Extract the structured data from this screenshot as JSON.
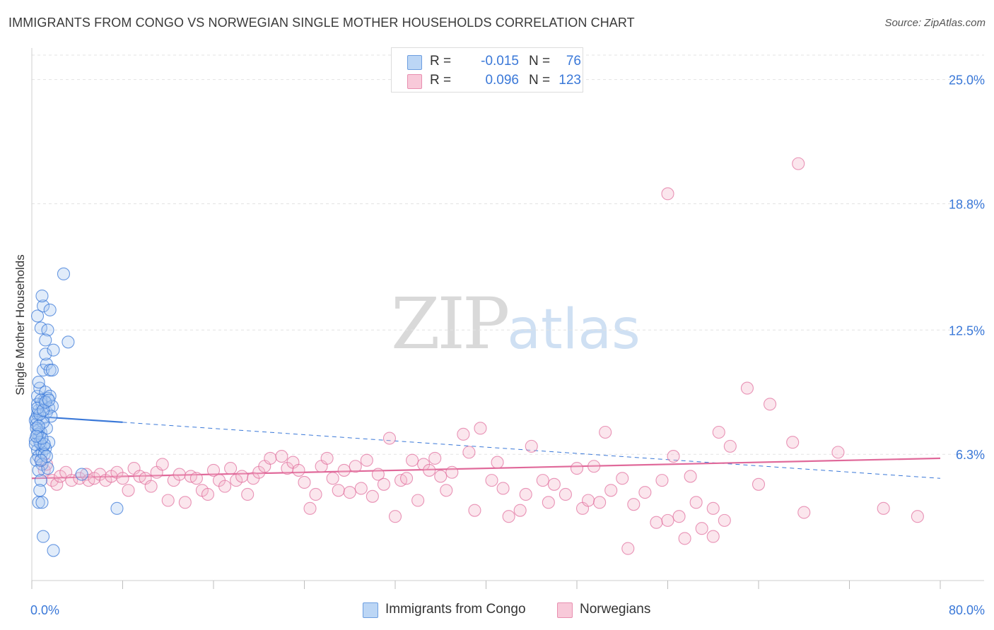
{
  "title": "IMMIGRANTS FROM CONGO VS NORWEGIAN SINGLE MOTHER HOUSEHOLDS CORRELATION CHART",
  "source": "Source: ZipAtlas.com",
  "watermark": {
    "zip": "ZIP",
    "atlas": "atlas"
  },
  "colors": {
    "blue": "#3a78d8",
    "blue_fill": "#a9c8f0",
    "pink": "#e0699a",
    "pink_fill": "#f4b6cb",
    "grid": "#e3e3e3"
  },
  "legend": {
    "rows": [
      {
        "r_label": "R =",
        "r_value": "-0.015",
        "n_label": "N =",
        "n_value": "76"
      },
      {
        "r_label": "R =",
        "r_value": "0.096",
        "n_label": "N =",
        "n_value": "123"
      }
    ]
  },
  "bottom_legend": [
    "Immigrants from Congo",
    "Norwegians"
  ],
  "chart_data": {
    "type": "scatter",
    "title": "IMMIGRANTS FROM CONGO VS NORWEGIAN SINGLE MOTHER HOUSEHOLDS CORRELATION CHART",
    "xlabel": "",
    "ylabel": "Single Mother Households",
    "xlim": [
      0,
      80
    ],
    "ylim": [
      0,
      26.5
    ],
    "x_tick_labels": [
      "0.0%",
      "80.0%"
    ],
    "y_ticks": [
      6.3,
      12.5,
      18.8,
      25.0
    ],
    "y_tick_labels": [
      "6.3%",
      "12.5%",
      "18.8%",
      "25.0%"
    ],
    "grid": true,
    "legend_position": "top-center",
    "series": [
      {
        "name": "Immigrants from Congo",
        "r": -0.015,
        "n": 76,
        "trend": {
          "x": [
            0,
            8
          ],
          "y": [
            8.2,
            7.9
          ],
          "dashed_to_x": 80,
          "dashed_end_y": 5.1
        },
        "points": [
          [
            0.3,
            8.0
          ],
          [
            0.4,
            7.8
          ],
          [
            0.5,
            8.3
          ],
          [
            0.6,
            7.5
          ],
          [
            0.3,
            7.0
          ],
          [
            0.7,
            7.2
          ],
          [
            0.8,
            6.8
          ],
          [
            0.5,
            6.5
          ],
          [
            0.6,
            6.2
          ],
          [
            0.4,
            6.0
          ],
          [
            0.9,
            6.4
          ],
          [
            1.0,
            6.7
          ],
          [
            0.8,
            7.4
          ],
          [
            0.6,
            8.5
          ],
          [
            0.9,
            8.8
          ],
          [
            1.1,
            9.0
          ],
          [
            0.5,
            9.2
          ],
          [
            0.7,
            9.6
          ],
          [
            1.2,
            9.4
          ],
          [
            1.0,
            8.1
          ],
          [
            1.3,
            8.4
          ],
          [
            1.5,
            8.6
          ],
          [
            1.4,
            9.1
          ],
          [
            1.6,
            9.2
          ],
          [
            1.8,
            8.7
          ],
          [
            1.7,
            8.2
          ],
          [
            1.3,
            7.6
          ],
          [
            1.5,
            6.9
          ],
          [
            1.2,
            6.6
          ],
          [
            1.1,
            6.3
          ],
          [
            0.9,
            5.8
          ],
          [
            0.6,
            5.5
          ],
          [
            0.8,
            5.0
          ],
          [
            0.7,
            4.5
          ],
          [
            0.6,
            3.9
          ],
          [
            0.9,
            3.9
          ],
          [
            1.0,
            10.5
          ],
          [
            1.3,
            10.8
          ],
          [
            1.6,
            10.5
          ],
          [
            1.8,
            10.5
          ],
          [
            1.2,
            11.3
          ],
          [
            1.9,
            11.5
          ],
          [
            0.8,
            12.6
          ],
          [
            1.4,
            12.5
          ],
          [
            1.2,
            12.0
          ],
          [
            0.5,
            13.2
          ],
          [
            1.0,
            13.7
          ],
          [
            1.6,
            13.5
          ],
          [
            0.9,
            14.2
          ],
          [
            2.8,
            15.3
          ],
          [
            3.2,
            11.9
          ],
          [
            1.0,
            2.2
          ],
          [
            1.9,
            1.5
          ],
          [
            4.4,
            5.3
          ],
          [
            7.5,
            3.6
          ],
          [
            0.4,
            8.1
          ],
          [
            0.5,
            7.3
          ],
          [
            0.7,
            6.9
          ],
          [
            0.3,
            6.8
          ],
          [
            0.5,
            8.8
          ],
          [
            0.8,
            9.0
          ],
          [
            1.0,
            7.9
          ],
          [
            0.6,
            9.9
          ],
          [
            0.4,
            7.6
          ],
          [
            1.1,
            6.8
          ],
          [
            0.9,
            7.1
          ],
          [
            1.3,
            6.2
          ],
          [
            0.7,
            8.3
          ],
          [
            0.5,
            8.6
          ],
          [
            1.4,
            5.6
          ],
          [
            1.0,
            8.5
          ],
          [
            0.8,
            6.0
          ],
          [
            0.6,
            7.7
          ],
          [
            1.2,
            8.9
          ],
          [
            0.4,
            7.2
          ],
          [
            1.5,
            9.0
          ]
        ]
      },
      {
        "name": "Norwegians",
        "r": 0.096,
        "n": 123,
        "trend": {
          "x": [
            0,
            80
          ],
          "y": [
            5.1,
            6.1
          ]
        },
        "points": [
          [
            0.8,
            6.0
          ],
          [
            1.1,
            5.5
          ],
          [
            1.3,
            5.8
          ],
          [
            1.8,
            5.0
          ],
          [
            2.2,
            4.8
          ],
          [
            2.5,
            5.2
          ],
          [
            3.0,
            5.4
          ],
          [
            3.5,
            5.0
          ],
          [
            4.2,
            5.1
          ],
          [
            4.8,
            5.3
          ],
          [
            5.0,
            5.0
          ],
          [
            5.5,
            5.1
          ],
          [
            6.0,
            5.3
          ],
          [
            6.5,
            5.0
          ],
          [
            7.0,
            5.2
          ],
          [
            7.5,
            5.4
          ],
          [
            8.0,
            5.1
          ],
          [
            8.5,
            4.5
          ],
          [
            9.0,
            5.6
          ],
          [
            9.5,
            5.2
          ],
          [
            10.0,
            5.1
          ],
          [
            10.5,
            4.7
          ],
          [
            11.0,
            5.4
          ],
          [
            11.5,
            5.8
          ],
          [
            12.0,
            4.0
          ],
          [
            12.5,
            5.0
          ],
          [
            13.0,
            5.3
          ],
          [
            13.5,
            3.9
          ],
          [
            14.0,
            5.2
          ],
          [
            14.5,
            5.1
          ],
          [
            15.0,
            4.5
          ],
          [
            15.5,
            4.3
          ],
          [
            16.0,
            5.5
          ],
          [
            16.5,
            5.0
          ],
          [
            17.0,
            4.7
          ],
          [
            17.5,
            5.6
          ],
          [
            18.0,
            5.0
          ],
          [
            18.5,
            5.2
          ],
          [
            19.0,
            4.3
          ],
          [
            19.5,
            5.1
          ],
          [
            20.0,
            5.4
          ],
          [
            20.5,
            5.7
          ],
          [
            21.0,
            6.1
          ],
          [
            22.0,
            6.2
          ],
          [
            22.5,
            5.6
          ],
          [
            23.0,
            5.9
          ],
          [
            23.5,
            5.5
          ],
          [
            24.0,
            4.9
          ],
          [
            24.5,
            3.6
          ],
          [
            25.0,
            4.3
          ],
          [
            25.5,
            5.7
          ],
          [
            26.0,
            6.1
          ],
          [
            26.5,
            5.1
          ],
          [
            27.0,
            4.5
          ],
          [
            27.5,
            5.5
          ],
          [
            28.0,
            4.4
          ],
          [
            28.5,
            5.7
          ],
          [
            29.0,
            4.6
          ],
          [
            29.5,
            6.0
          ],
          [
            30.0,
            4.2
          ],
          [
            30.5,
            5.3
          ],
          [
            31.0,
            4.8
          ],
          [
            31.5,
            7.1
          ],
          [
            32.0,
            3.2
          ],
          [
            32.5,
            5.0
          ],
          [
            33.0,
            5.1
          ],
          [
            33.5,
            6.0
          ],
          [
            34.0,
            4.0
          ],
          [
            34.5,
            5.8
          ],
          [
            35.0,
            5.5
          ],
          [
            35.5,
            6.1
          ],
          [
            36.0,
            5.2
          ],
          [
            36.5,
            4.5
          ],
          [
            37.0,
            5.4
          ],
          [
            38.0,
            7.3
          ],
          [
            38.5,
            6.4
          ],
          [
            39.0,
            3.5
          ],
          [
            39.5,
            7.6
          ],
          [
            40.5,
            5.0
          ],
          [
            41.0,
            5.9
          ],
          [
            41.5,
            4.6
          ],
          [
            42.0,
            3.2
          ],
          [
            43.0,
            3.5
          ],
          [
            43.5,
            4.3
          ],
          [
            44.0,
            6.7
          ],
          [
            45.0,
            5.0
          ],
          [
            45.5,
            3.9
          ],
          [
            46.0,
            4.8
          ],
          [
            47.0,
            4.3
          ],
          [
            48.0,
            5.6
          ],
          [
            48.5,
            3.6
          ],
          [
            49.0,
            4.0
          ],
          [
            49.5,
            5.7
          ],
          [
            50.0,
            3.9
          ],
          [
            50.5,
            7.4
          ],
          [
            51.0,
            4.5
          ],
          [
            52.0,
            5.1
          ],
          [
            52.5,
            1.6
          ],
          [
            53.0,
            3.8
          ],
          [
            54.0,
            4.4
          ],
          [
            55.0,
            2.9
          ],
          [
            55.5,
            5.0
          ],
          [
            56.0,
            3.0
          ],
          [
            57.0,
            3.2
          ],
          [
            58.0,
            5.2
          ],
          [
            58.5,
            3.9
          ],
          [
            60.0,
            2.2
          ],
          [
            61.0,
            3.0
          ],
          [
            63.0,
            9.6
          ],
          [
            64.0,
            4.8
          ],
          [
            65.0,
            8.8
          ],
          [
            67.0,
            6.9
          ],
          [
            68.0,
            3.4
          ],
          [
            71.0,
            6.4
          ],
          [
            75.0,
            3.6
          ],
          [
            78.0,
            3.2
          ],
          [
            56.0,
            19.3
          ],
          [
            67.5,
            20.8
          ],
          [
            56.5,
            6.2
          ],
          [
            59.0,
            2.6
          ],
          [
            61.5,
            6.7
          ],
          [
            60.5,
            7.4
          ],
          [
            60.0,
            3.6
          ],
          [
            57.5,
            2.1
          ]
        ]
      }
    ]
  }
}
